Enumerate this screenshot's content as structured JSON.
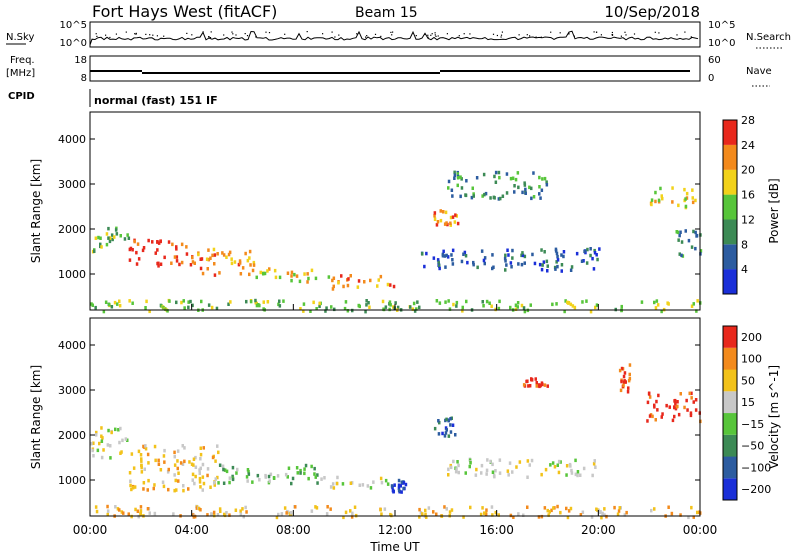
{
  "header": {
    "station": "Fort Hays West (fitACF)",
    "beam": "Beam 15",
    "date": "10/Sep/2018"
  },
  "info_panel": {
    "nsky_label": "N.Sky",
    "nsearch_label": "N.Search",
    "nsky_ticks": [
      "10^5",
      "10^0"
    ],
    "nsearch_ticks": [
      "10^5",
      "10^0"
    ],
    "freq_label_1": "Freq.",
    "freq_label_2": "[MHz]",
    "freq_ticks": [
      "18",
      "8"
    ],
    "nave_label": "Nave",
    "nave_ticks": [
      "60",
      "0"
    ],
    "cpid_label": "CPID",
    "cpid_text": "normal (fast) 151 IF"
  },
  "chart_data": [
    {
      "type": "heatmap",
      "title": "",
      "xlabel": "",
      "ylabel": "Slant Range [km]",
      "xlim": [
        0,
        24
      ],
      "ylim": [
        200,
        4600
      ],
      "y_ticks": [
        1000,
        2000,
        3000,
        4000
      ],
      "y_tick_labels": [
        "1000",
        "2000",
        "3000",
        "4000"
      ],
      "colorbar": {
        "label": "Power [dB]",
        "ticks": [
          "4",
          "8",
          "12",
          "16",
          "20",
          "24",
          "28"
        ],
        "colors": [
          "#1a2fd8",
          "#2c5ca0",
          "#3c8a55",
          "#57c53a",
          "#f2d21a",
          "#f38a1c",
          "#e8281c"
        ]
      },
      "regions": [
        {
          "t0": 0.0,
          "t1": 1.5,
          "r0": 1500,
          "r1": 2100,
          "level": 3
        },
        {
          "t0": 1.5,
          "t1": 4.0,
          "r0": 1200,
          "r1": 1800,
          "level": 6
        },
        {
          "t0": 4.0,
          "t1": 6.5,
          "r0": 1000,
          "r1": 1600,
          "level": 5
        },
        {
          "t0": 6.5,
          "t1": 9.5,
          "r0": 850,
          "r1": 1150,
          "level": 4
        },
        {
          "t0": 9.5,
          "t1": 12.0,
          "r0": 700,
          "r1": 1000,
          "level": 5
        },
        {
          "t0": 13.0,
          "t1": 20.0,
          "r0": 1100,
          "r1": 1600,
          "level": 1
        },
        {
          "t0": 13.5,
          "t1": 14.5,
          "r0": 2100,
          "r1": 2500,
          "level": 5
        },
        {
          "t0": 14.0,
          "t1": 18.0,
          "r0": 2700,
          "r1": 3300,
          "level": 2
        },
        {
          "t0": 22.0,
          "t1": 23.8,
          "r0": 2500,
          "r1": 3000,
          "level": 4
        },
        {
          "t0": 23.0,
          "t1": 24.0,
          "r0": 1400,
          "r1": 2000,
          "level": 2
        },
        {
          "t0": 0.0,
          "t1": 24.0,
          "r0": 200,
          "r1": 450,
          "level": 3
        }
      ]
    },
    {
      "type": "heatmap",
      "title": "",
      "xlabel": "Time UT",
      "ylabel": "Slant Range [km]",
      "xlim": [
        0,
        24
      ],
      "ylim": [
        200,
        4600
      ],
      "x_ticks": [
        "00:00",
        "04:00",
        "08:00",
        "12:00",
        "16:00",
        "20:00",
        "00:00"
      ],
      "y_ticks": [
        1000,
        2000,
        3000,
        4000
      ],
      "y_tick_labels": [
        "1000",
        "2000",
        "3000",
        "4000"
      ],
      "colorbar": {
        "label": "Velocity [m s^-1]",
        "ticks": [
          "200",
          "100",
          "50",
          "15",
          "−15",
          "−50",
          "−100",
          "−200"
        ],
        "colors": [
          "#1a2fd8",
          "#2c5ca0",
          "#3c8a55",
          "#57c53a",
          "#c8c8c8",
          "#f2c21a",
          "#f38a1c",
          "#e8281c"
        ]
      },
      "regions": [
        {
          "t0": 0.0,
          "t1": 1.5,
          "r0": 1500,
          "r1": 2200,
          "level": 4
        },
        {
          "t0": 1.5,
          "t1": 5.0,
          "r0": 800,
          "r1": 1800,
          "level": 5
        },
        {
          "t0": 5.0,
          "t1": 9.0,
          "r0": 950,
          "r1": 1400,
          "level": 3
        },
        {
          "t0": 9.0,
          "t1": 12.0,
          "r0": 850,
          "r1": 1100,
          "level": 4
        },
        {
          "t0": 11.8,
          "t1": 12.4,
          "r0": 750,
          "r1": 1050,
          "level": 0
        },
        {
          "t0": 14.0,
          "t1": 20.0,
          "r0": 1100,
          "r1": 1500,
          "level": 4
        },
        {
          "t0": 13.5,
          "t1": 14.5,
          "r0": 2000,
          "r1": 2500,
          "level": 1
        },
        {
          "t0": 17.0,
          "t1": 18.0,
          "r0": 3100,
          "r1": 3300,
          "level": 7
        },
        {
          "t0": 21.8,
          "t1": 24.0,
          "r0": 2300,
          "r1": 3000,
          "level": 7
        },
        {
          "t0": 20.8,
          "t1": 21.2,
          "r0": 3000,
          "r1": 3600,
          "level": 7
        },
        {
          "t0": 0.0,
          "t1": 24.0,
          "r0": 200,
          "r1": 450,
          "level": 5
        }
      ]
    }
  ]
}
